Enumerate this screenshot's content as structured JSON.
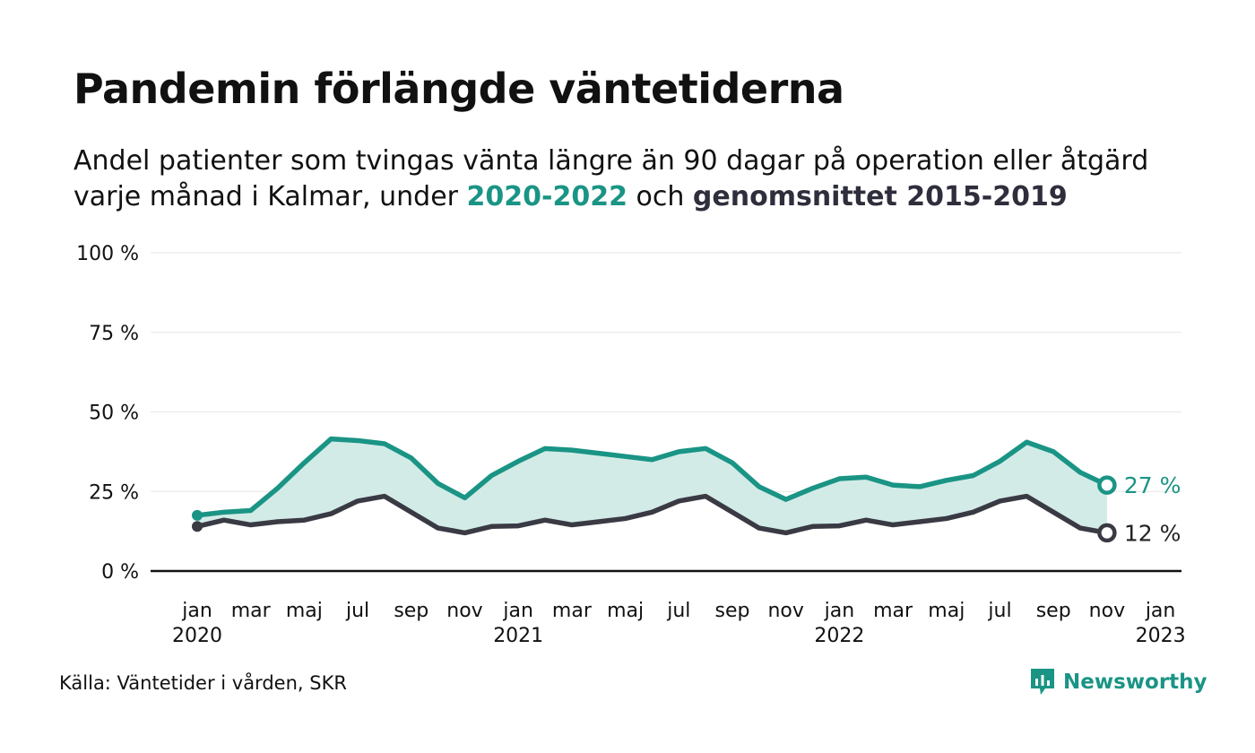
{
  "title": "Pandemin förlängde väntetiderna",
  "subtitle": {
    "part1": "Andel patienter som tvingas vänta längre än 90 dagar på operation eller åtgärd",
    "part2": "varje månad i Kalmar, under ",
    "highlight1": "2020-2022",
    "part3": " och ",
    "highlight2": "genomsnittet 2015-2019"
  },
  "source": "Källa: Väntetider i vården, SKR",
  "logo": {
    "text": "Newsworthy",
    "icon": "bar-chart-icon"
  },
  "colors": {
    "teal": "#1a9485",
    "dark": "#3a3a44",
    "fill": "#d2ebe7",
    "grid": "#e6e6e6"
  },
  "chart_data": {
    "type": "area",
    "x": [
      "2020-01",
      "2020-02",
      "2020-03",
      "2020-04",
      "2020-05",
      "2020-06",
      "2020-07",
      "2020-08",
      "2020-09",
      "2020-10",
      "2020-11",
      "2020-12",
      "2021-01",
      "2021-02",
      "2021-03",
      "2021-04",
      "2021-05",
      "2021-06",
      "2021-07",
      "2021-08",
      "2021-09",
      "2021-10",
      "2021-11",
      "2021-12",
      "2022-01",
      "2022-02",
      "2022-03",
      "2022-04",
      "2022-05",
      "2022-06",
      "2022-07",
      "2022-08",
      "2022-09",
      "2022-10",
      "2022-11"
    ],
    "series": [
      {
        "name": "2020-2022",
        "color": "#1a9485",
        "values": [
          17.5,
          18.5,
          19,
          26,
          34,
          41.5,
          41,
          40,
          35.5,
          27.5,
          23,
          30,
          34.5,
          38.5,
          38,
          37,
          36,
          35,
          37.5,
          38.5,
          34,
          26.5,
          22.5,
          26,
          29,
          29.5,
          27,
          26.5,
          28.5,
          30,
          34.5,
          40.5,
          37.5,
          31,
          27
        ]
      },
      {
        "name": "genomsnittet 2015-2019",
        "color": "#3a3a44",
        "values": [
          14,
          16,
          14.5,
          15.5,
          16,
          18,
          22,
          23.5,
          18.5,
          13.5,
          12,
          14,
          14.2,
          16,
          14.5,
          15.5,
          16.5,
          18.5,
          22,
          23.5,
          18.5,
          13.5,
          12,
          14,
          14.2,
          16,
          14.5,
          15.5,
          16.5,
          18.5,
          22,
          23.5,
          18.5,
          13.5,
          12
        ]
      }
    ],
    "ylim": [
      0,
      100
    ],
    "yticks": [
      "0 %",
      "25 %",
      "50 %",
      "75 %",
      "100 %"
    ],
    "ytick_values": [
      0,
      25,
      50,
      75,
      100
    ],
    "xticks": [
      {
        "month": "jan",
        "year": "2020",
        "i": 0
      },
      {
        "month": "mar",
        "year": "",
        "i": 2
      },
      {
        "month": "maj",
        "year": "",
        "i": 4
      },
      {
        "month": "jul",
        "year": "",
        "i": 6
      },
      {
        "month": "sep",
        "year": "",
        "i": 8
      },
      {
        "month": "nov",
        "year": "",
        "i": 10
      },
      {
        "month": "jan",
        "year": "2021",
        "i": 12
      },
      {
        "month": "mar",
        "year": "",
        "i": 14
      },
      {
        "month": "maj",
        "year": "",
        "i": 16
      },
      {
        "month": "jul",
        "year": "",
        "i": 18
      },
      {
        "month": "sep",
        "year": "",
        "i": 20
      },
      {
        "month": "nov",
        "year": "",
        "i": 22
      },
      {
        "month": "jan",
        "year": "2022",
        "i": 24
      },
      {
        "month": "mar",
        "year": "",
        "i": 26
      },
      {
        "month": "maj",
        "year": "",
        "i": 28
      },
      {
        "month": "jul",
        "year": "",
        "i": 30
      },
      {
        "month": "sep",
        "year": "",
        "i": 32
      },
      {
        "month": "nov",
        "year": "",
        "i": 34
      },
      {
        "month": "jan",
        "year": "2023",
        "i": 36
      }
    ],
    "end_labels": [
      "27 %",
      "12 %"
    ],
    "grid": true
  }
}
